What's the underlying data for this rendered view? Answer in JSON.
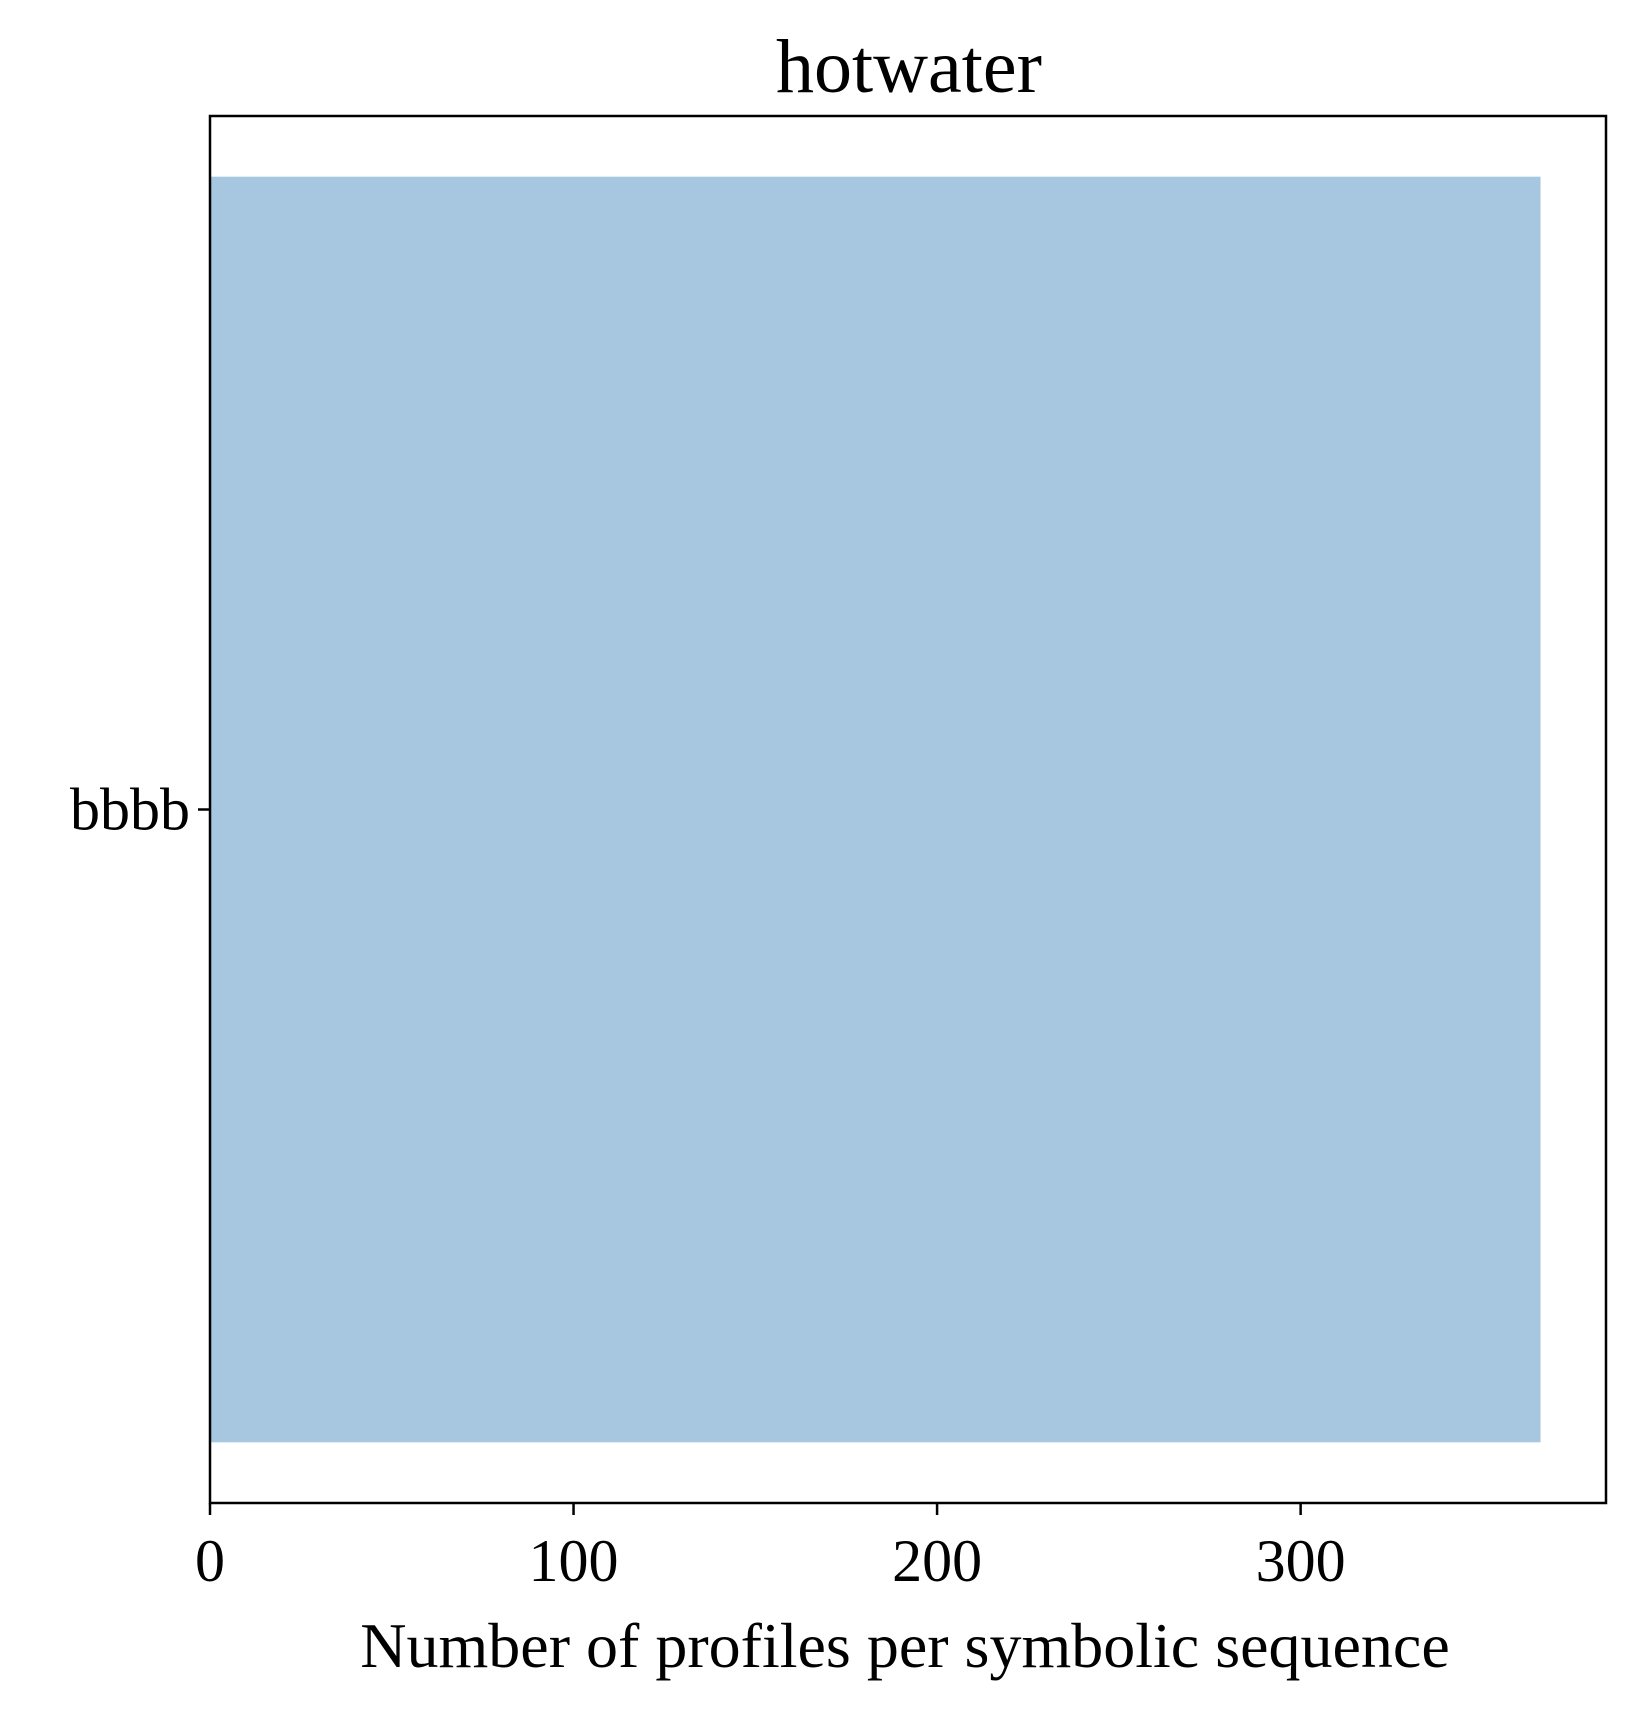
{
  "chart_data": {
    "type": "bar",
    "orientation": "horizontal",
    "title": "hotwater",
    "xlabel": "Number of profiles per symbolic sequence",
    "ylabel": "",
    "categories": [
      "bbbb"
    ],
    "values": [
      366
    ],
    "xlim": [
      0,
      384
    ],
    "xticks": [
      0,
      100,
      200,
      300
    ],
    "xtick_labels": [
      "0",
      "100",
      "200",
      "300"
    ],
    "bar_color": "#a6c7df",
    "grid": false
  }
}
